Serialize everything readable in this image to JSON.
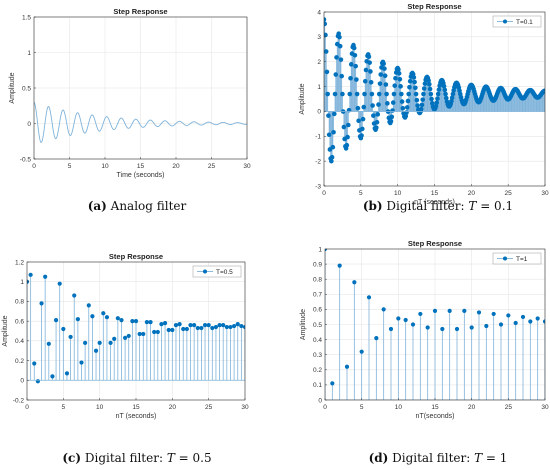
{
  "colors": {
    "series": "#0072BD",
    "stem": "#7fb3da",
    "analog": "#7fb3da",
    "grid": "#e6e6e6",
    "axis": "#333333"
  },
  "chart_data": [
    {
      "id": "a",
      "type": "line",
      "title": "Step Response",
      "xlabel": "Time (seconds)",
      "ylabel": "Amplitude",
      "caption_label": "(a)",
      "caption_text": "Analog filter",
      "xlim": [
        0,
        30
      ],
      "ylim": [
        -0.5,
        1.5
      ],
      "xticks": [
        0,
        5,
        10,
        15,
        20,
        25,
        30
      ],
      "yticks": [
        -0.5,
        0,
        0.5,
        1,
        1.5
      ],
      "grid": true,
      "legend": null,
      "series": [
        {
          "sampled_from": "damped-oscillation",
          "x_start": 0,
          "x_end": 30,
          "amp0": 0.3,
          "decay_time": 9,
          "period": 2.05
        }
      ]
    },
    {
      "id": "b",
      "type": "stem",
      "title": "Step Response",
      "xlabel": "nT (seconds)",
      "ylabel": "Amplitude",
      "caption_label": "(b)",
      "caption_text": "Digital filter:",
      "caption_T": "T",
      "caption_value": "= 0.1",
      "xlim": [
        0,
        30
      ],
      "ylim": [
        -3,
        4
      ],
      "xticks": [
        0,
        5,
        10,
        15,
        20,
        25,
        30
      ],
      "yticks": [
        -3,
        -2,
        -1,
        0,
        1,
        2,
        3,
        4
      ],
      "grid": true,
      "legend": {
        "text": "T=0.1",
        "position": "top-right"
      },
      "series": [
        {
          "name": "T=0.1",
          "sampled_from": "damped-oscillation",
          "T": 0.1,
          "offset": 0.7,
          "amp0": 3.0,
          "decay_time": 9.5,
          "period": 2.0
        }
      ]
    },
    {
      "id": "c",
      "type": "stem",
      "title": "Step Response",
      "xlabel": "nT (seconds)",
      "ylabel": "Amplitude",
      "caption_label": "(c)",
      "caption_text": "Digital filter:",
      "caption_T": "T",
      "caption_value": "= 0.5",
      "xlim": [
        0,
        30
      ],
      "ylim": [
        -0.2,
        1.2
      ],
      "xticks": [
        0,
        5,
        10,
        15,
        20,
        25,
        30
      ],
      "yticks": [
        -0.2,
        0,
        0.2,
        0.4,
        0.6,
        0.8,
        1,
        1.2
      ],
      "grid": true,
      "legend": {
        "text": "T=0.5",
        "position": "top-right"
      },
      "series": [
        {
          "name": "T=0.5",
          "x": [
            0,
            0.5,
            1,
            1.5,
            2,
            2.5,
            3,
            3.5,
            4,
            4.5,
            5,
            5.5,
            6,
            6.5,
            7,
            7.5,
            8,
            8.5,
            9,
            9.5,
            10,
            10.5,
            11,
            11.5,
            12,
            12.5,
            13,
            13.5,
            14,
            14.5,
            15,
            15.5,
            16,
            16.5,
            17,
            17.5,
            18,
            18.5,
            19,
            19.5,
            20,
            20.5,
            21,
            21.5,
            22,
            22.5,
            23,
            23.5,
            24,
            24.5,
            25,
            25.5,
            26,
            26.5,
            27,
            27.5,
            28,
            28.5,
            29,
            29.5,
            30
          ],
          "y": [
            1.0,
            1.07,
            0.17,
            -0.01,
            0.78,
            1.05,
            0.37,
            0.04,
            0.61,
            0.98,
            0.52,
            0.07,
            0.44,
            0.86,
            0.62,
            0.18,
            0.38,
            0.76,
            0.65,
            0.3,
            0.38,
            0.68,
            0.64,
            0.38,
            0.42,
            0.63,
            0.61,
            0.43,
            0.45,
            0.6,
            0.6,
            0.47,
            0.47,
            0.59,
            0.59,
            0.49,
            0.49,
            0.57,
            0.58,
            0.51,
            0.51,
            0.56,
            0.57,
            0.52,
            0.52,
            0.56,
            0.56,
            0.53,
            0.53,
            0.56,
            0.56,
            0.53,
            0.54,
            0.56,
            0.56,
            0.54,
            0.54,
            0.55,
            0.57,
            0.55,
            0.54
          ]
        }
      ]
    },
    {
      "id": "d",
      "type": "stem",
      "title": "Step Response",
      "xlabel": "nT(seconds)",
      "ylabel": "Amplitude",
      "caption_label": "(d)",
      "caption_text": "Digital filter:",
      "caption_T": "T",
      "caption_value": "= 1",
      "xlim": [
        0,
        30
      ],
      "ylim": [
        0,
        1
      ],
      "xticks": [
        0,
        5,
        10,
        15,
        20,
        25,
        30
      ],
      "yticks": [
        0,
        0.1,
        0.2,
        0.3,
        0.4,
        0.5,
        0.6,
        0.7,
        0.8,
        0.9,
        1
      ],
      "grid": true,
      "legend": {
        "text": "T=1",
        "position": "top-right"
      },
      "series": [
        {
          "name": "T=1",
          "x": [
            0,
            1,
            2,
            3,
            4,
            5,
            6,
            7,
            8,
            9,
            10,
            11,
            12,
            13,
            14,
            15,
            16,
            17,
            18,
            19,
            20,
            21,
            22,
            23,
            24,
            25,
            26,
            27,
            28,
            29,
            30
          ],
          "y": [
            1.0,
            0.11,
            0.89,
            0.22,
            0.78,
            0.32,
            0.68,
            0.41,
            0.6,
            0.47,
            0.54,
            0.53,
            0.5,
            0.57,
            0.48,
            0.59,
            0.47,
            0.59,
            0.47,
            0.59,
            0.48,
            0.58,
            0.49,
            0.57,
            0.5,
            0.56,
            0.51,
            0.55,
            0.52,
            0.54,
            0.52
          ]
        }
      ]
    }
  ]
}
